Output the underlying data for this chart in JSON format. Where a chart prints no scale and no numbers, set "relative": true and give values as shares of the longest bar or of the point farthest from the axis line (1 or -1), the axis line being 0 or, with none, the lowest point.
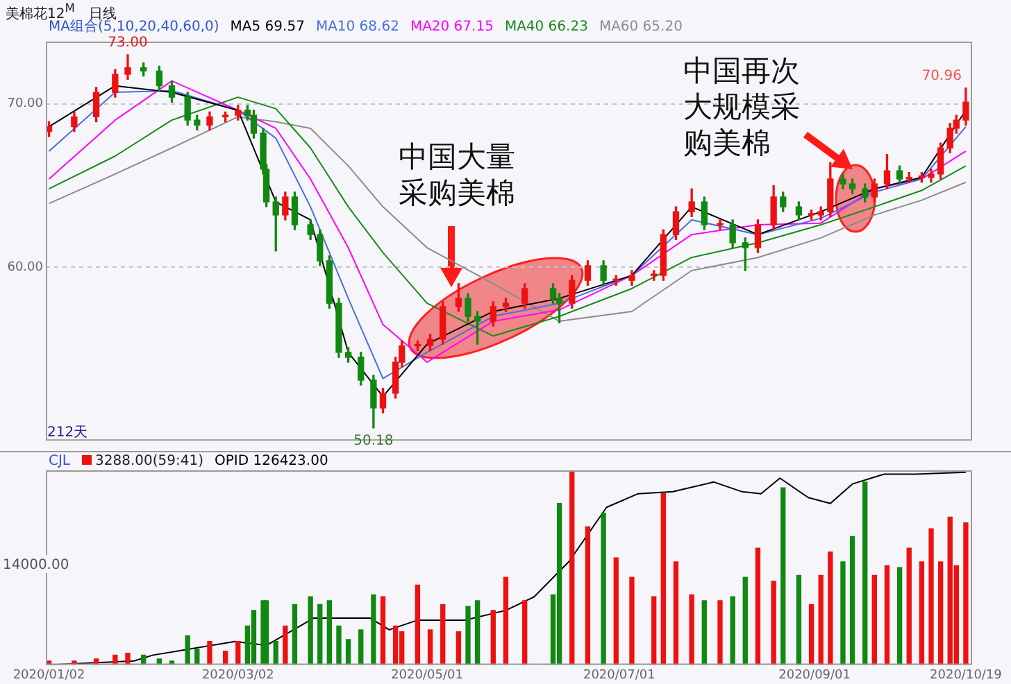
{
  "chart_data": [
    {
      "type": "candlestick",
      "title": "美棉花12$^{M}$",
      "subtitle": "日线",
      "legend_title": "MA组合(5,10,20,40,60,0)",
      "legend": "top left",
      "x": [
        "2020-01-02",
        "2020-01-10",
        "2020-01-17",
        "2020-01-23",
        "2020-01-27",
        "2020-02-01",
        "2020-02-06",
        "2020-02-10",
        "2020-02-15",
        "2020-02-18",
        "2020-02-22",
        "2020-02-27",
        "2020-03-02",
        "2020-03-05",
        "2020-03-07",
        "2020-03-10",
        "2020-03-11",
        "2020-03-14",
        "2020-03-17",
        "2020-03-20",
        "2020-03-25",
        "2020-03-28",
        "2020-03-31",
        "2020-04-03",
        "2020-04-06",
        "2020-04-10",
        "2020-04-14",
        "2020-04-17",
        "2020-04-21",
        "2020-04-23",
        "2020-04-28",
        "2020-05-02",
        "2020-05-06",
        "2020-05-11",
        "2020-05-14",
        "2020-05-17",
        "2020-05-22",
        "2020-05-26",
        "2020-06-01",
        "2020-06-10",
        "2020-06-12",
        "2020-06-16",
        "2020-06-21",
        "2020-06-26",
        "2020-06-30",
        "2020-07-05",
        "2020-07-12",
        "2020-07-15",
        "2020-07-19",
        "2020-07-24",
        "2020-07-28",
        "2020-08-02",
        "2020-08-06",
        "2020-08-10",
        "2020-08-14",
        "2020-08-19",
        "2020-08-22",
        "2020-08-27",
        "2020-08-31",
        "2020-09-03",
        "2020-09-06",
        "2020-09-10",
        "2020-09-13",
        "2020-09-17",
        "2020-09-20",
        "2020-09-24",
        "2020-09-28",
        "2020-10-01",
        "2020-10-05",
        "2020-10-08",
        "2020-10-11",
        "2020-10-14",
        "2020-10-16",
        "2020-10-19"
      ],
      "ohlc": [
        [
          68.3,
          68.9,
          68.0,
          68.6
        ],
        [
          68.6,
          69.5,
          68.3,
          69.2
        ],
        [
          69.2,
          71.0,
          68.9,
          70.7
        ],
        [
          70.7,
          72.1,
          70.4,
          71.8
        ],
        [
          71.8,
          73.0,
          71.5,
          72.2
        ],
        [
          72.2,
          72.5,
          71.7,
          72.0
        ],
        [
          72.0,
          72.3,
          70.8,
          71.1
        ],
        [
          71.1,
          71.4,
          70.1,
          70.4
        ],
        [
          70.4,
          70.7,
          68.7,
          69.0
        ],
        [
          69.0,
          69.3,
          68.4,
          68.7
        ],
        [
          68.7,
          69.5,
          68.4,
          69.2
        ],
        [
          69.2,
          69.5,
          68.9,
          69.3
        ],
        [
          69.3,
          69.9,
          69.0,
          69.6
        ],
        [
          69.6,
          69.9,
          69.0,
          69.3
        ],
        [
          69.3,
          69.6,
          67.9,
          68.2
        ],
        [
          68.2,
          68.5,
          65.7,
          66.0
        ],
        [
          66.0,
          66.3,
          63.7,
          64.0
        ],
        [
          64.0,
          64.3,
          61.0,
          63.2
        ],
        [
          63.2,
          64.6,
          62.9,
          64.3
        ],
        [
          64.3,
          64.6,
          62.3,
          62.6
        ],
        [
          62.6,
          62.9,
          61.7,
          62.0
        ],
        [
          62.0,
          62.3,
          60.1,
          60.4
        ],
        [
          60.4,
          60.7,
          57.5,
          57.8
        ],
        [
          57.8,
          58.1,
          54.5,
          54.8
        ],
        [
          54.8,
          55.1,
          54.2,
          54.5
        ],
        [
          54.5,
          54.8,
          52.8,
          53.1
        ],
        [
          53.1,
          53.4,
          50.18,
          51.4
        ],
        [
          51.4,
          52.6,
          51.1,
          52.3
        ],
        [
          52.3,
          54.5,
          52.0,
          54.2
        ],
        [
          54.2,
          55.5,
          53.9,
          55.2
        ],
        [
          55.2,
          55.5,
          54.9,
          55.2
        ],
        [
          55.2,
          55.9,
          54.9,
          55.6
        ],
        [
          55.6,
          57.9,
          55.3,
          57.6
        ],
        [
          57.6,
          59.0,
          57.3,
          58.1
        ],
        [
          58.1,
          58.4,
          56.7,
          57.0
        ],
        [
          57.0,
          57.3,
          55.3,
          56.7
        ],
        [
          56.7,
          57.9,
          56.4,
          57.6
        ],
        [
          57.6,
          58.1,
          57.3,
          57.8
        ],
        [
          57.8,
          59.0,
          57.5,
          58.7
        ],
        [
          58.7,
          59.0,
          57.8,
          58.1
        ],
        [
          58.1,
          58.4,
          56.6,
          57.8
        ],
        [
          57.8,
          59.5,
          57.5,
          59.2
        ],
        [
          59.2,
          60.4,
          58.9,
          60.1
        ],
        [
          60.1,
          60.4,
          58.9,
          59.2
        ],
        [
          59.2,
          59.5,
          58.9,
          59.2
        ],
        [
          59.2,
          59.8,
          58.9,
          59.5
        ],
        [
          59.5,
          59.8,
          59.2,
          59.5
        ],
        [
          59.5,
          62.3,
          59.2,
          62.0
        ],
        [
          62.0,
          63.7,
          61.7,
          63.4
        ],
        [
          63.4,
          64.8,
          63.1,
          64.0
        ],
        [
          64.0,
          64.3,
          62.3,
          62.6
        ],
        [
          62.6,
          62.9,
          62.3,
          62.6
        ],
        [
          62.6,
          62.9,
          61.2,
          61.5
        ],
        [
          61.5,
          61.8,
          59.8,
          61.2
        ],
        [
          61.2,
          62.9,
          60.9,
          62.6
        ],
        [
          62.6,
          65.0,
          62.3,
          64.3
        ],
        [
          64.3,
          64.6,
          63.4,
          63.7
        ],
        [
          63.7,
          64.0,
          62.9,
          63.2
        ],
        [
          63.2,
          63.5,
          62.9,
          63.2
        ],
        [
          63.2,
          63.7,
          62.9,
          63.4
        ],
        [
          63.4,
          66.4,
          63.1,
          65.4
        ],
        [
          65.4,
          65.7,
          64.8,
          65.1
        ],
        [
          65.1,
          65.4,
          64.5,
          64.8
        ],
        [
          64.8,
          65.1,
          64.0,
          64.3
        ],
        [
          64.3,
          65.4,
          64.0,
          65.1
        ],
        [
          65.1,
          66.9,
          64.8,
          65.9
        ],
        [
          65.9,
          66.2,
          65.1,
          65.4
        ],
        [
          65.4,
          65.8,
          65.2,
          65.5
        ],
        [
          65.5,
          65.8,
          65.2,
          65.5
        ],
        [
          65.5,
          66.0,
          65.2,
          65.7
        ],
        [
          65.7,
          67.6,
          65.4,
          67.3
        ],
        [
          67.3,
          68.8,
          67.0,
          68.5
        ],
        [
          68.5,
          69.3,
          68.2,
          69.0
        ],
        [
          69.0,
          70.96,
          68.7,
          70.1
        ]
      ],
      "colors": [
        "#ee1111",
        "#ee1111",
        "#ee1111",
        "#ee1111",
        "#ee1111",
        "#118811",
        "#118811",
        "#118811",
        "#118811",
        "#118811",
        "#ee1111",
        "#ee1111",
        "#ee1111",
        "#118811",
        "#118811",
        "#118811",
        "#118811",
        "#118811",
        "#ee1111",
        "#118811",
        "#118811",
        "#118811",
        "#118811",
        "#118811",
        "#118811",
        "#118811",
        "#118811",
        "#ee1111",
        "#ee1111",
        "#ee1111",
        "#ee1111",
        "#ee1111",
        "#ee1111",
        "#ee1111",
        "#118811",
        "#118811",
        "#ee1111",
        "#ee1111",
        "#ee1111",
        "#118811",
        "#118811",
        "#ee1111",
        "#ee1111",
        "#118811",
        "#ee1111",
        "#ee1111",
        "#ee1111",
        "#ee1111",
        "#ee1111",
        "#ee1111",
        "#118811",
        "#ee1111",
        "#118811",
        "#118811",
        "#ee1111",
        "#ee1111",
        "#118811",
        "#118811",
        "#ee1111",
        "#ee1111",
        "#ee1111",
        "#118811",
        "#118811",
        "#118811",
        "#ee1111",
        "#ee1111",
        "#118811",
        "#ee1111",
        "#ee1111",
        "#ee1111",
        "#ee1111",
        "#ee1111",
        "#ee1111",
        "#ee1111"
      ],
      "series": [
        {
          "type": "line",
          "name": "MA5 69.57",
          "color": "#000000",
          "x": [
            "2020-01-02",
            "2020-01-23",
            "2020-02-10",
            "2020-03-02",
            "2020-03-14",
            "2020-03-25",
            "2020-04-06",
            "2020-04-17",
            "2020-05-01",
            "2020-05-22",
            "2020-06-12",
            "2020-07-05",
            "2020-07-24",
            "2020-08-14",
            "2020-09-03",
            "2020-09-20",
            "2020-10-05",
            "2020-10-19"
          ],
          "values": [
            68.6,
            71.1,
            70.7,
            69.6,
            64.0,
            62.9,
            54.8,
            52.1,
            55.3,
            57.3,
            58.1,
            59.5,
            63.7,
            62.0,
            63.4,
            64.8,
            65.5,
            69.6
          ]
        },
        {
          "type": "line",
          "name": "MA10 68.62",
          "color": "#4a6ee0",
          "x": [
            "2020-01-02",
            "2020-01-23",
            "2020-02-10",
            "2020-03-02",
            "2020-03-14",
            "2020-03-25",
            "2020-04-06",
            "2020-04-17",
            "2020-05-01",
            "2020-05-22",
            "2020-06-12",
            "2020-07-05",
            "2020-07-24",
            "2020-08-14",
            "2020-09-03",
            "2020-09-20",
            "2020-10-05",
            "2020-10-19"
          ],
          "values": [
            67.1,
            70.7,
            70.8,
            69.6,
            67.9,
            63.7,
            58.1,
            53.2,
            54.8,
            57.0,
            57.8,
            59.5,
            62.9,
            62.0,
            63.0,
            64.6,
            65.4,
            68.6
          ]
        },
        {
          "type": "line",
          "name": "MA20 67.15",
          "color": "#ff00ff",
          "x": [
            "2020-01-02",
            "2020-01-23",
            "2020-02-10",
            "2020-03-02",
            "2020-03-14",
            "2020-03-25",
            "2020-04-06",
            "2020-04-17",
            "2020-05-01",
            "2020-05-22",
            "2020-06-12",
            "2020-07-05",
            "2020-07-24",
            "2020-08-14",
            "2020-09-03",
            "2020-09-20",
            "2020-10-05",
            "2020-10-19"
          ],
          "values": [
            65.4,
            69.0,
            71.4,
            69.6,
            68.5,
            65.4,
            61.2,
            56.5,
            54.2,
            56.7,
            57.4,
            59.5,
            62.0,
            62.6,
            62.7,
            64.8,
            65.4,
            67.1
          ]
        },
        {
          "type": "line",
          "name": "MA40 66.23",
          "color": "#1a8a1a",
          "x": [
            "2020-01-02",
            "2020-01-23",
            "2020-02-10",
            "2020-03-02",
            "2020-03-14",
            "2020-03-25",
            "2020-04-06",
            "2020-04-17",
            "2020-05-01",
            "2020-05-22",
            "2020-06-12",
            "2020-07-05",
            "2020-07-24",
            "2020-08-14",
            "2020-09-03",
            "2020-09-20",
            "2020-10-05",
            "2020-10-19"
          ],
          "values": [
            64.8,
            66.8,
            69.0,
            70.4,
            69.7,
            67.3,
            63.7,
            60.9,
            57.8,
            55.8,
            57.0,
            58.7,
            60.6,
            61.5,
            62.6,
            63.7,
            64.7,
            66.2
          ]
        },
        {
          "type": "line",
          "name": "MA60 65.20",
          "color": "#8c8c8c",
          "x": [
            "2020-01-02",
            "2020-01-23",
            "2020-02-10",
            "2020-03-02",
            "2020-03-14",
            "2020-03-25",
            "2020-04-06",
            "2020-04-17",
            "2020-05-01",
            "2020-05-22",
            "2020-06-12",
            "2020-07-05",
            "2020-07-24",
            "2020-08-14",
            "2020-09-03",
            "2020-09-20",
            "2020-10-05",
            "2020-10-19"
          ],
          "values": [
            63.9,
            65.7,
            67.3,
            69.2,
            68.9,
            68.5,
            66.2,
            63.7,
            61.2,
            59.0,
            56.7,
            57.3,
            59.8,
            60.6,
            61.8,
            63.2,
            64.1,
            65.2
          ]
        }
      ],
      "xlim": [
        "2020-01-01",
        "2020-10-21"
      ],
      "ylim": [
        49.4,
        73.8
      ],
      "yticks": [
        {
          "value": 60,
          "label": "60.00"
        },
        {
          "value": 70,
          "label": "70.00"
        }
      ],
      "grid": "y",
      "tick_labels": "y",
      "marker": "none",
      "annotations": [
        "212天",
        "中国大量采购美棉",
        "中国再次大规模采购美棉",
        {
          "text": "73.00",
          "x": "2020-01-27",
          "y": 73.0
        },
        {
          "text": "50.18",
          "x": "2020-04-14",
          "y": 50.18
        },
        {
          "text": "70.96",
          "x": "2020-10-19",
          "y": 70.96
        }
      ]
    },
    {
      "type": "bar",
      "relative": true,
      "legend_title": "CJL",
      "legend": "top left",
      "marker": "none",
      "x": [
        "2020-01-02",
        "2020-01-10",
        "2020-01-17",
        "2020-01-23",
        "2020-01-27",
        "2020-02-01",
        "2020-02-06",
        "2020-02-10",
        "2020-02-15",
        "2020-02-18",
        "2020-02-22",
        "2020-02-27",
        "2020-03-02",
        "2020-03-05",
        "2020-03-07",
        "2020-03-10",
        "2020-03-11",
        "2020-03-14",
        "2020-03-17",
        "2020-03-20",
        "2020-03-25",
        "2020-03-28",
        "2020-03-31",
        "2020-04-03",
        "2020-04-06",
        "2020-04-10",
        "2020-04-14",
        "2020-04-17",
        "2020-04-21",
        "2020-04-23",
        "2020-04-28",
        "2020-05-02",
        "2020-05-06",
        "2020-05-11",
        "2020-05-14",
        "2020-05-17",
        "2020-05-22",
        "2020-05-26",
        "2020-06-01",
        "2020-06-10",
        "2020-06-12",
        "2020-06-16",
        "2020-06-21",
        "2020-06-26",
        "2020-06-30",
        "2020-07-05",
        "2020-07-12",
        "2020-07-15",
        "2020-07-19",
        "2020-07-24",
        "2020-07-28",
        "2020-08-02",
        "2020-08-06",
        "2020-08-10",
        "2020-08-14",
        "2020-08-19",
        "2020-08-22",
        "2020-08-27",
        "2020-08-31",
        "2020-09-03",
        "2020-09-06",
        "2020-09-10",
        "2020-09-13",
        "2020-09-17",
        "2020-09-20",
        "2020-09-24",
        "2020-09-28",
        "2020-10-01",
        "2020-10-05",
        "2020-10-08",
        "2020-10-11",
        "2020-10-14",
        "2020-10-16",
        "2020-10-19"
      ],
      "xlim": [
        "2020-01-01",
        "2020-10-21"
      ],
      "xticks": [
        {
          "value": "2020-01-02",
          "label": "2020/01/02"
        },
        {
          "value": "2020-03-02",
          "label": "2020/03/02"
        },
        {
          "value": "2020-05-01",
          "label": "2020/05/01"
        },
        {
          "value": "2020-07-01",
          "label": "2020/07/01"
        },
        {
          "value": "2020-09-01",
          "label": "2020/09/01"
        },
        {
          "value": "2020-10-19",
          "label": "2020/10/19"
        }
      ],
      "series": [
        {
          "type": "bar",
          "name": "3288.00(59:41)",
          "colors": [
            "#ee1111",
            "#ee1111",
            "#ee1111",
            "#ee1111",
            "#ee1111",
            "#118811",
            "#118811",
            "#118811",
            "#118811",
            "#118811",
            "#ee1111",
            "#ee1111",
            "#ee1111",
            "#118811",
            "#118811",
            "#118811",
            "#118811",
            "#118811",
            "#ee1111",
            "#118811",
            "#118811",
            "#118811",
            "#118811",
            "#118811",
            "#118811",
            "#118811",
            "#118811",
            "#ee1111",
            "#ee1111",
            "#ee1111",
            "#ee1111",
            "#ee1111",
            "#ee1111",
            "#ee1111",
            "#118811",
            "#118811",
            "#ee1111",
            "#ee1111",
            "#ee1111",
            "#118811",
            "#118811",
            "#ee1111",
            "#ee1111",
            "#118811",
            "#ee1111",
            "#ee1111",
            "#ee1111",
            "#ee1111",
            "#ee1111",
            "#ee1111",
            "#118811",
            "#ee1111",
            "#118811",
            "#118811",
            "#ee1111",
            "#ee1111",
            "#118811",
            "#118811",
            "#ee1111",
            "#ee1111",
            "#ee1111",
            "#118811",
            "#118811",
            "#118811",
            "#ee1111",
            "#ee1111",
            "#118811",
            "#ee1111",
            "#ee1111",
            "#ee1111",
            "#ee1111",
            "#ee1111",
            "#ee1111",
            "#ee1111"
          ],
          "values": [
            0.02,
            0.02,
            0.03,
            0.05,
            0.06,
            0.05,
            0.03,
            0.02,
            0.15,
            0.08,
            0.12,
            0.07,
            0.12,
            0.2,
            0.28,
            0.33,
            0.33,
            0.12,
            0.2,
            0.31,
            0.35,
            0.31,
            0.33,
            0.2,
            0.13,
            0.18,
            0.36,
            0.35,
            0.2,
            0.17,
            0.41,
            0.18,
            0.31,
            0.17,
            0.3,
            0.33,
            0.28,
            0.45,
            0.33,
            0.36,
            0.83,
            1,
            0.71,
            0.78,
            0.55,
            0.45,
            0.35,
            0.88,
            0.53,
            0.36,
            0.33,
            0.33,
            0.35,
            0.45,
            0.6,
            0.43,
            0.91,
            0.46,
            0.31,
            0.46,
            0.58,
            0.53,
            0.66,
            0.94,
            0.46,
            0.51,
            0.5,
            0.6,
            0.53,
            0.7,
            0.53,
            0.76,
            0.51,
            0.73
          ]
        },
        {
          "type": "line",
          "name": "OPID 126423.00",
          "color": "#000000",
          "x": [
            "2020-01-02",
            "2020-01-29",
            "2020-02-04",
            "2020-03-01",
            "2020-03-11",
            "2020-03-26",
            "2020-04-13",
            "2020-04-19",
            "2020-04-28",
            "2020-05-13",
            "2020-05-26",
            "2020-06-04",
            "2020-06-15",
            "2020-06-27",
            "2020-07-07",
            "2020-07-18",
            "2020-07-31",
            "2020-08-09",
            "2020-08-15",
            "2020-08-21",
            "2020-08-30",
            "2020-09-06",
            "2020-09-13",
            "2020-09-23",
            "2020-10-03",
            "2020-10-19"
          ],
          "values": [
            0,
            0.02,
            0.05,
            0.12,
            0.1,
            0.24,
            0.24,
            0.18,
            0.23,
            0.23,
            0.28,
            0.35,
            0.53,
            0.81,
            0.88,
            0.89,
            0.94,
            0.89,
            0.88,
            0.96,
            0.86,
            0.83,
            0.93,
            0.98,
            0.98,
            0.99
          ]
        }
      ],
      "annotations": [
        "14000.00"
      ]
    }
  ]
}
